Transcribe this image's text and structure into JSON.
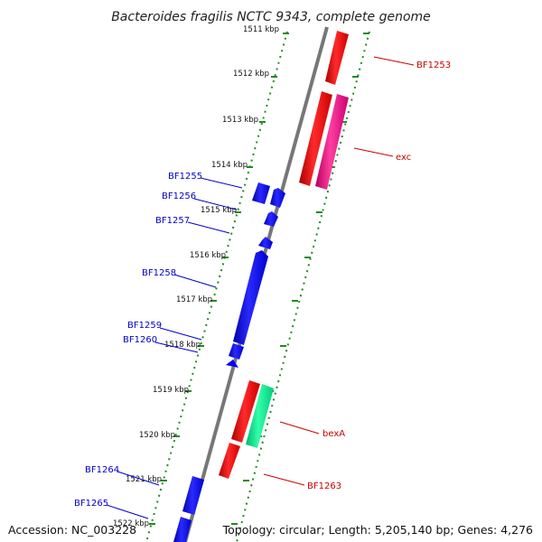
{
  "title": "Bacteroides fragilis NCTC 9343, complete genome",
  "footer": {
    "accession": "Accession: NC_003228",
    "summary": "Topology: circular; Length: 5,205,140 bp; Genes: 4,276"
  },
  "scale": {
    "ticks": [
      "1511 kbp",
      "1512 kbp",
      "1513 kbp",
      "1514 kbp",
      "1515 kbp",
      "1516 kbp",
      "1517 kbp",
      "1518 kbp",
      "1519 kbp",
      "1520 kbp",
      "1521 kbp",
      "1522 kbp"
    ]
  },
  "colors": {
    "forward_cds": "#ff0000",
    "forward_cds_alt": "#ff1493",
    "forward_cds_green": "#00e68a",
    "reverse_cds": "#0000ff",
    "backbone": "#888888",
    "ruler": "#228b22"
  },
  "genes": {
    "BF1253": "BF1253",
    "exc": "exc",
    "BF1255": "BF1255",
    "BF1256": "BF1256",
    "BF1257": "BF1257",
    "BF1258": "BF1258",
    "BF1259": "BF1259",
    "BF1260": "BF1260",
    "bexA": "bexA",
    "BF1263": "BF1263",
    "BF1264": "BF1264",
    "BF1265": "BF1265"
  }
}
